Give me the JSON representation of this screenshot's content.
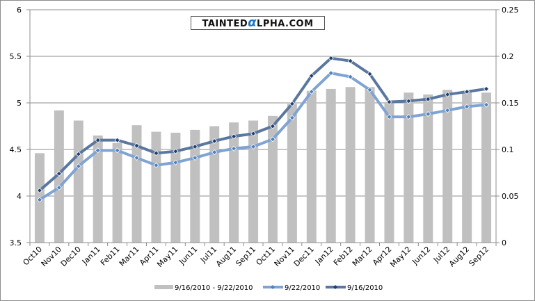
{
  "chart_data": {
    "type": "bar+line",
    "title": "",
    "watermark": "TAINTEDαLPHA.COM",
    "categories": [
      "Oct10",
      "Nov10",
      "Dec10",
      "Jan11",
      "Feb11",
      "Mar11",
      "Apr11",
      "May11",
      "Jun11",
      "Jul11",
      "Aug11",
      "Sep11",
      "Oct11",
      "Nov11",
      "Dec11",
      "Jan12",
      "Feb12",
      "Mar12",
      "Apr12",
      "May12",
      "Jun12",
      "Jul12",
      "Aug12",
      "Sep12"
    ],
    "left_axis": {
      "ylim": [
        3.5,
        6
      ],
      "ticks": [
        "3.5",
        "4",
        "4.5",
        "5",
        "5.5",
        "6"
      ]
    },
    "right_axis": {
      "ylim": [
        0,
        0.25
      ],
      "ticks": [
        "0",
        "0.05",
        "0.1",
        "0.15",
        "0.2",
        "0.25"
      ]
    },
    "grid": true,
    "legend_position": "bottom",
    "series": [
      {
        "name": "9/16/2010 - 9/22/2010",
        "type": "bar",
        "axis": "right",
        "color": "#c0c0c0",
        "values": [
          0.096,
          0.142,
          0.131,
          0.115,
          0.107,
          0.126,
          0.119,
          0.118,
          0.121,
          0.125,
          0.129,
          0.131,
          0.136,
          0.149,
          0.163,
          0.165,
          0.167,
          0.167,
          0.151,
          0.161,
          0.159,
          0.164,
          0.163,
          0.161
        ]
      },
      {
        "name": "9/22/2010",
        "type": "line",
        "axis": "left",
        "color": "#7fa3d3",
        "marker_color": "#4f81bd",
        "values": [
          3.96,
          4.09,
          4.32,
          4.49,
          4.49,
          4.41,
          4.33,
          4.36,
          4.41,
          4.47,
          4.51,
          4.53,
          4.61,
          4.84,
          5.12,
          5.32,
          5.28,
          5.14,
          4.85,
          4.85,
          4.88,
          4.92,
          4.96,
          4.98
        ]
      },
      {
        "name": "9/16/2010",
        "type": "line",
        "axis": "left",
        "color": "#5a77a0",
        "marker_color": "#1f3f6e",
        "values": [
          4.06,
          4.24,
          4.45,
          4.6,
          4.6,
          4.54,
          4.46,
          4.48,
          4.53,
          4.59,
          4.64,
          4.67,
          4.75,
          4.99,
          5.29,
          5.48,
          5.45,
          5.31,
          5.01,
          5.02,
          5.04,
          5.09,
          5.12,
          5.15
        ]
      }
    ]
  }
}
